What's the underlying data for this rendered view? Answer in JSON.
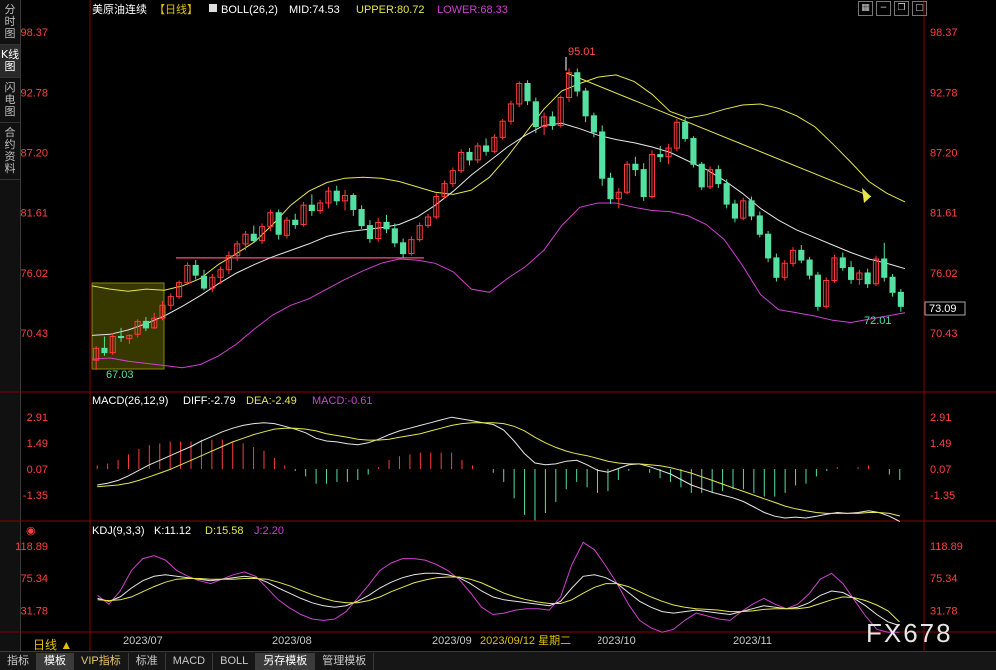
{
  "left_tabs": [
    {
      "label": "分时图",
      "active": false
    },
    {
      "label": "K线图",
      "active": true
    },
    {
      "label": "闪电图",
      "active": false
    },
    {
      "label": "合约资料",
      "active": false
    }
  ],
  "header": {
    "instrument": "美原油连续",
    "period": "【日线】",
    "boll_label": "BOLL(26,2)",
    "mid": "MID:74.53",
    "upper": "UPPER:80.72",
    "lower": "LOWER:68.33"
  },
  "tool_icons": [
    "grid-icon",
    "minus-icon",
    "restore-icon",
    "maximize-icon"
  ],
  "colors": {
    "up": "#ff3b3b",
    "down": "#54e0a0",
    "mid": "#e6e6e6",
    "upper": "#e6e64c",
    "lower": "#d040d0",
    "price_red": "#ff4040",
    "grid": "#8b0000",
    "box": "#6b6b00"
  },
  "price_axis": {
    "labels": [
      "98.37",
      "92.78",
      "87.20",
      "81.61",
      "76.02",
      "70.43"
    ],
    "current_price": "73.09"
  },
  "annotations": {
    "high": "95.01",
    "low_left": "67.03",
    "low_right": "72.01",
    "hover_date": "2023/09/12 星期二"
  },
  "macd": {
    "label": "MACD(26,12,9)",
    "diff": "DIFF:-2.79",
    "dea": "DEA:-2.49",
    "macd": "MACD:-0.61",
    "axis": [
      "2.91",
      "1.49",
      "0.07",
      "-1.35"
    ]
  },
  "kdj": {
    "label": "KDJ(9,3,3)",
    "k": "K:11.12",
    "d": "D:15.58",
    "j": "J:2.20",
    "axis": [
      "118.89",
      "75.34",
      "31.78"
    ]
  },
  "x_axis": {
    "labels": [
      "2023/07",
      "2023/08",
      "2023/09",
      "2023/10",
      "2023/11"
    ]
  },
  "period_button": "日线 ▲",
  "bottom_tabs": [
    {
      "label": "指标",
      "active": false
    },
    {
      "label": "模板",
      "active": true
    },
    {
      "label": "VIP指标",
      "active": false
    },
    {
      "label": "标准",
      "active": false
    },
    {
      "label": "MACD",
      "active": false
    },
    {
      "label": "BOLL",
      "active": false
    },
    {
      "label": "另存模板",
      "active": true
    },
    {
      "label": "管理模板",
      "active": false
    }
  ],
  "watermark": "FX678",
  "chart_data": {
    "type": "candlestick",
    "title": "美原油连续【日线】",
    "ylim": [
      65.5,
      99.5
    ],
    "candles": [
      {
        "o": 67.9,
        "h": 69.2,
        "l": 67.0,
        "c": 69.0
      },
      {
        "o": 69.0,
        "h": 70.1,
        "l": 68.3,
        "c": 68.6
      },
      {
        "o": 68.6,
        "h": 70.4,
        "l": 68.4,
        "c": 70.1
      },
      {
        "o": 70.1,
        "h": 70.9,
        "l": 69.6,
        "c": 70.0
      },
      {
        "o": 69.9,
        "h": 70.3,
        "l": 69.4,
        "c": 70.2
      },
      {
        "o": 70.3,
        "h": 71.7,
        "l": 70.0,
        "c": 71.5
      },
      {
        "o": 71.5,
        "h": 71.9,
        "l": 70.6,
        "c": 70.9
      },
      {
        "o": 70.9,
        "h": 72.3,
        "l": 70.8,
        "c": 71.8
      },
      {
        "o": 71.8,
        "h": 73.4,
        "l": 71.6,
        "c": 73.0
      },
      {
        "o": 73.0,
        "h": 74.1,
        "l": 72.6,
        "c": 73.8
      },
      {
        "o": 73.8,
        "h": 75.3,
        "l": 73.6,
        "c": 75.1
      },
      {
        "o": 75.1,
        "h": 77.0,
        "l": 74.9,
        "c": 76.7
      },
      {
        "o": 76.7,
        "h": 77.2,
        "l": 75.4,
        "c": 75.8
      },
      {
        "o": 75.7,
        "h": 76.3,
        "l": 74.4,
        "c": 74.6
      },
      {
        "o": 74.6,
        "h": 75.9,
        "l": 74.2,
        "c": 75.6
      },
      {
        "o": 75.6,
        "h": 76.6,
        "l": 75.0,
        "c": 76.3
      },
      {
        "o": 76.3,
        "h": 78.0,
        "l": 75.9,
        "c": 77.6
      },
      {
        "o": 77.6,
        "h": 79.0,
        "l": 77.1,
        "c": 78.7
      },
      {
        "o": 78.7,
        "h": 79.9,
        "l": 78.1,
        "c": 79.6
      },
      {
        "o": 79.6,
        "h": 80.4,
        "l": 78.8,
        "c": 79.0
      },
      {
        "o": 79.0,
        "h": 80.6,
        "l": 78.7,
        "c": 80.3
      },
      {
        "o": 80.3,
        "h": 81.9,
        "l": 79.9,
        "c": 81.6
      },
      {
        "o": 81.6,
        "h": 81.9,
        "l": 79.1,
        "c": 79.6
      },
      {
        "o": 79.5,
        "h": 81.2,
        "l": 79.2,
        "c": 80.9
      },
      {
        "o": 80.9,
        "h": 81.5,
        "l": 80.1,
        "c": 80.5
      },
      {
        "o": 80.5,
        "h": 82.6,
        "l": 80.3,
        "c": 82.3
      },
      {
        "o": 82.3,
        "h": 83.3,
        "l": 81.3,
        "c": 81.8
      },
      {
        "o": 81.8,
        "h": 82.8,
        "l": 81.5,
        "c": 82.5
      },
      {
        "o": 82.5,
        "h": 84.0,
        "l": 82.0,
        "c": 83.6
      },
      {
        "o": 83.6,
        "h": 84.1,
        "l": 82.3,
        "c": 82.7
      },
      {
        "o": 82.7,
        "h": 83.7,
        "l": 81.8,
        "c": 83.2
      },
      {
        "o": 83.2,
        "h": 83.4,
        "l": 81.3,
        "c": 81.9
      },
      {
        "o": 81.9,
        "h": 82.3,
        "l": 80.1,
        "c": 80.4
      },
      {
        "o": 80.4,
        "h": 80.9,
        "l": 78.8,
        "c": 79.2
      },
      {
        "o": 79.2,
        "h": 81.1,
        "l": 78.9,
        "c": 80.7
      },
      {
        "o": 80.7,
        "h": 81.4,
        "l": 79.7,
        "c": 80.1
      },
      {
        "o": 80.1,
        "h": 80.6,
        "l": 78.4,
        "c": 78.8
      },
      {
        "o": 78.8,
        "h": 79.2,
        "l": 77.4,
        "c": 77.8
      },
      {
        "o": 77.8,
        "h": 79.4,
        "l": 77.6,
        "c": 79.1
      },
      {
        "o": 79.1,
        "h": 80.7,
        "l": 78.9,
        "c": 80.4
      },
      {
        "o": 80.4,
        "h": 81.5,
        "l": 80.2,
        "c": 81.2
      },
      {
        "o": 81.2,
        "h": 83.4,
        "l": 81.0,
        "c": 83.1
      },
      {
        "o": 83.1,
        "h": 84.6,
        "l": 82.9,
        "c": 84.3
      },
      {
        "o": 84.3,
        "h": 85.8,
        "l": 84.0,
        "c": 85.5
      },
      {
        "o": 85.5,
        "h": 87.5,
        "l": 85.3,
        "c": 87.2
      },
      {
        "o": 87.2,
        "h": 87.6,
        "l": 86.0,
        "c": 86.5
      },
      {
        "o": 86.5,
        "h": 88.1,
        "l": 86.2,
        "c": 87.8
      },
      {
        "o": 87.8,
        "h": 88.5,
        "l": 86.9,
        "c": 87.3
      },
      {
        "o": 87.3,
        "h": 88.9,
        "l": 87.1,
        "c": 88.6
      },
      {
        "o": 88.6,
        "h": 90.3,
        "l": 88.4,
        "c": 90.1
      },
      {
        "o": 90.1,
        "h": 92.0,
        "l": 89.8,
        "c": 91.7
      },
      {
        "o": 91.7,
        "h": 93.8,
        "l": 91.4,
        "c": 93.6
      },
      {
        "o": 93.6,
        "h": 93.9,
        "l": 91.6,
        "c": 92.0
      },
      {
        "o": 91.9,
        "h": 92.3,
        "l": 89.0,
        "c": 89.6
      },
      {
        "o": 89.6,
        "h": 90.9,
        "l": 88.8,
        "c": 90.5
      },
      {
        "o": 90.5,
        "h": 91.0,
        "l": 89.3,
        "c": 89.7
      },
      {
        "o": 89.7,
        "h": 92.5,
        "l": 89.5,
        "c": 92.3
      },
      {
        "o": 92.3,
        "h": 95.0,
        "l": 91.9,
        "c": 94.6
      },
      {
        "o": 94.6,
        "h": 95.0,
        "l": 92.4,
        "c": 92.9
      },
      {
        "o": 92.9,
        "h": 93.2,
        "l": 90.0,
        "c": 90.6
      },
      {
        "o": 90.6,
        "h": 90.9,
        "l": 88.6,
        "c": 89.1
      },
      {
        "o": 89.1,
        "h": 89.7,
        "l": 84.1,
        "c": 84.8
      },
      {
        "o": 84.8,
        "h": 85.3,
        "l": 82.4,
        "c": 82.9
      },
      {
        "o": 82.9,
        "h": 83.9,
        "l": 82.0,
        "c": 83.5
      },
      {
        "o": 83.5,
        "h": 86.4,
        "l": 83.3,
        "c": 86.1
      },
      {
        "o": 86.1,
        "h": 86.8,
        "l": 85.0,
        "c": 85.6
      },
      {
        "o": 85.6,
        "h": 86.2,
        "l": 82.7,
        "c": 83.1
      },
      {
        "o": 83.1,
        "h": 87.4,
        "l": 82.9,
        "c": 87.0
      },
      {
        "o": 87.0,
        "h": 87.8,
        "l": 86.3,
        "c": 86.8
      },
      {
        "o": 86.8,
        "h": 88.0,
        "l": 86.1,
        "c": 87.6
      },
      {
        "o": 87.6,
        "h": 90.3,
        "l": 87.3,
        "c": 90.0
      },
      {
        "o": 90.0,
        "h": 90.4,
        "l": 88.2,
        "c": 88.5
      },
      {
        "o": 88.5,
        "h": 88.7,
        "l": 85.8,
        "c": 86.1
      },
      {
        "o": 86.1,
        "h": 86.3,
        "l": 83.7,
        "c": 84.0
      },
      {
        "o": 84.0,
        "h": 85.9,
        "l": 83.8,
        "c": 85.6
      },
      {
        "o": 85.6,
        "h": 86.0,
        "l": 83.9,
        "c": 84.3
      },
      {
        "o": 84.3,
        "h": 84.7,
        "l": 82.0,
        "c": 82.4
      },
      {
        "o": 82.4,
        "h": 82.8,
        "l": 80.7,
        "c": 81.1
      },
      {
        "o": 81.1,
        "h": 83.0,
        "l": 80.9,
        "c": 82.7
      },
      {
        "o": 82.7,
        "h": 83.1,
        "l": 80.9,
        "c": 81.3
      },
      {
        "o": 81.3,
        "h": 81.7,
        "l": 79.3,
        "c": 79.6
      },
      {
        "o": 79.6,
        "h": 79.9,
        "l": 77.0,
        "c": 77.4
      },
      {
        "o": 77.4,
        "h": 77.8,
        "l": 75.2,
        "c": 75.6
      },
      {
        "o": 75.6,
        "h": 77.2,
        "l": 75.3,
        "c": 76.9
      },
      {
        "o": 76.9,
        "h": 78.4,
        "l": 76.6,
        "c": 78.1
      },
      {
        "o": 78.1,
        "h": 78.6,
        "l": 76.9,
        "c": 77.2
      },
      {
        "o": 77.2,
        "h": 77.5,
        "l": 75.4,
        "c": 75.8
      },
      {
        "o": 75.8,
        "h": 76.1,
        "l": 72.5,
        "c": 72.9
      },
      {
        "o": 72.9,
        "h": 75.6,
        "l": 72.7,
        "c": 75.3
      },
      {
        "o": 75.3,
        "h": 77.7,
        "l": 75.1,
        "c": 77.4
      },
      {
        "o": 77.4,
        "h": 77.9,
        "l": 76.2,
        "c": 76.5
      },
      {
        "o": 76.5,
        "h": 77.1,
        "l": 75.0,
        "c": 75.4
      },
      {
        "o": 75.4,
        "h": 76.3,
        "l": 74.9,
        "c": 76.0
      },
      {
        "o": 76.0,
        "h": 76.4,
        "l": 74.6,
        "c": 75.0
      },
      {
        "o": 75.0,
        "h": 77.6,
        "l": 74.8,
        "c": 77.3
      },
      {
        "o": 77.3,
        "h": 78.8,
        "l": 75.2,
        "c": 75.6
      },
      {
        "o": 75.6,
        "h": 75.9,
        "l": 73.8,
        "c": 74.2
      },
      {
        "o": 74.2,
        "h": 74.5,
        "l": 72.4,
        "c": 72.9
      }
    ],
    "boll_upper": [
      74.8,
      74.5,
      74.3,
      74.5,
      74.4,
      74.8,
      75.5,
      76.8,
      77.8,
      78.9,
      80.5,
      82.3,
      83.6,
      84.4,
      84.8,
      84.9,
      84.8,
      84.5,
      84.0,
      83.5,
      83.3,
      83.7,
      84.9,
      86.8,
      89.0,
      91.2,
      92.9,
      93.6,
      94.2,
      94.4,
      93.8,
      92.6,
      91.0,
      90.4,
      90.7,
      91.2,
      91.6,
      91.7,
      91.3,
      90.6,
      89.6,
      88.0,
      86.3,
      84.5,
      83.4,
      82.6
    ],
    "boll_mid": [
      70.2,
      70.3,
      70.7,
      71.3,
      72.0,
      72.9,
      73.9,
      75.0,
      76.0,
      76.8,
      77.5,
      78.1,
      78.7,
      79.4,
      79.8,
      80.0,
      80.2,
      80.5,
      81.2,
      82.3,
      83.6,
      85.1,
      86.4,
      87.7,
      88.8,
      89.7,
      89.9,
      89.4,
      88.8,
      88.4,
      88.1,
      87.7,
      87.2,
      86.4,
      85.6,
      84.6,
      83.4,
      82.0,
      80.9,
      80.0,
      79.3,
      78.6,
      77.9,
      77.3,
      76.9,
      76.4
    ],
    "boll_lower": [
      68.0,
      68.1,
      67.8,
      67.6,
      67.4,
      67.2,
      67.5,
      68.3,
      69.4,
      70.8,
      72.1,
      73.0,
      73.6,
      74.5,
      75.4,
      76.2,
      76.9,
      77.3,
      77.2,
      76.9,
      76.1,
      74.5,
      74.2,
      75.5,
      76.6,
      78.1,
      80.4,
      82.1,
      82.5,
      82.5,
      82.1,
      81.8,
      81.7,
      81.3,
      80.5,
      79.1,
      76.7,
      74.0,
      72.6,
      72.3,
      72.0,
      71.6,
      71.4,
      71.7,
      72.0,
      72.3
    ],
    "macd_ylim": [
      -2.6,
      3.4
    ],
    "diff": [
      -0.8,
      -0.7,
      -0.55,
      -0.3,
      0.0,
      0.3,
      0.55,
      0.8,
      1.05,
      1.3,
      1.6,
      1.85,
      2.1,
      2.3,
      2.45,
      2.55,
      2.6,
      2.55,
      2.4,
      2.25,
      2.05,
      1.75,
      1.6,
      1.55,
      1.45,
      1.4,
      1.5,
      1.7,
      1.95,
      2.15,
      2.3,
      2.45,
      2.6,
      2.75,
      2.9,
      2.8,
      2.7,
      2.6,
      2.5,
      2.2,
      1.6,
      0.9,
      0.4,
      0.3,
      0.35,
      0.5,
      0.55,
      0.3,
      0.0,
      -0.1,
      0.1,
      0.3,
      0.35,
      0.2,
      0.0,
      -0.2,
      -0.5,
      -0.8,
      -1.0,
      -1.2,
      -1.35,
      -1.5,
      -1.7,
      -2.0,
      -2.3,
      -2.5,
      -2.6,
      -2.55,
      -2.6,
      -2.5,
      -2.4,
      -2.3,
      -2.35,
      -2.3,
      -2.2,
      -2.3,
      -2.5,
      -2.79
    ],
    "dea": [
      -0.9,
      -0.85,
      -0.8,
      -0.7,
      -0.55,
      -0.35,
      -0.15,
      0.05,
      0.3,
      0.55,
      0.8,
      1.05,
      1.3,
      1.55,
      1.75,
      1.95,
      2.1,
      2.25,
      2.3,
      2.3,
      2.25,
      2.15,
      2.0,
      1.9,
      1.8,
      1.7,
      1.65,
      1.65,
      1.7,
      1.8,
      1.9,
      2.0,
      2.15,
      2.3,
      2.45,
      2.55,
      2.6,
      2.6,
      2.6,
      2.55,
      2.4,
      2.15,
      1.8,
      1.5,
      1.25,
      1.05,
      0.9,
      0.8,
      0.65,
      0.5,
      0.4,
      0.35,
      0.35,
      0.3,
      0.25,
      0.15,
      0.0,
      -0.15,
      -0.35,
      -0.55,
      -0.75,
      -0.95,
      -1.15,
      -1.35,
      -1.55,
      -1.75,
      -1.95,
      -2.1,
      -2.2,
      -2.3,
      -2.35,
      -2.35,
      -2.35,
      -2.35,
      -2.3,
      -2.3,
      -2.35,
      -2.49
    ],
    "kdj_ylim": [
      5,
      130
    ],
    "k": [
      48,
      44,
      50,
      62,
      72,
      78,
      80,
      78,
      76,
      74,
      72,
      74,
      76,
      78,
      76,
      70,
      62,
      55,
      48,
      42,
      38,
      36,
      38,
      44,
      52,
      62,
      70,
      76,
      80,
      82,
      82,
      80,
      76,
      68,
      58,
      50,
      46,
      44,
      42,
      40,
      38,
      44,
      62,
      78,
      80,
      76,
      68,
      56,
      44,
      36,
      30,
      28,
      30,
      32,
      30,
      28,
      26,
      30,
      34,
      38,
      36,
      34,
      36,
      42,
      52,
      58,
      56,
      48,
      38,
      26,
      16,
      11
    ],
    "d": [
      46,
      45,
      46,
      50,
      57,
      64,
      70,
      74,
      75,
      75,
      74,
      74,
      74,
      75,
      75,
      74,
      70,
      65,
      59,
      53,
      48,
      44,
      42,
      42,
      45,
      50,
      57,
      63,
      69,
      73,
      76,
      77,
      77,
      74,
      69,
      62,
      55,
      50,
      46,
      43,
      41,
      41,
      46,
      55,
      63,
      68,
      68,
      64,
      57,
      50,
      44,
      39,
      36,
      34,
      33,
      32,
      30,
      30,
      31,
      33,
      34,
      34,
      34,
      36,
      41,
      46,
      50,
      49,
      45,
      39,
      31,
      16
    ],
    "j": [
      52,
      40,
      58,
      86,
      102,
      106,
      100,
      86,
      78,
      72,
      68,
      74,
      80,
      84,
      78,
      62,
      46,
      35,
      26,
      20,
      18,
      20,
      30,
      48,
      66,
      86,
      96,
      102,
      102,
      100,
      94,
      86,
      74,
      56,
      36,
      26,
      28,
      32,
      34,
      34,
      32,
      50,
      94,
      124,
      114,
      92,
      68,
      40,
      18,
      8,
      2,
      6,
      18,
      28,
      24,
      20,
      18,
      30,
      40,
      48,
      40,
      34,
      40,
      54,
      74,
      82,
      68,
      46,
      24,
      6,
      2,
      2
    ]
  }
}
